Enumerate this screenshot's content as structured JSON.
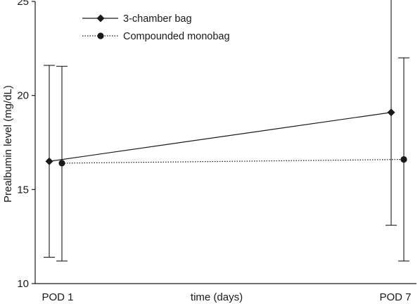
{
  "chart_data": {
    "type": "line",
    "x_categories": [
      "POD 1",
      "POD 7"
    ],
    "xlabel": "time (days)",
    "ylabel": "Prealbumin level (mg/dL)",
    "ylim": [
      10,
      25
    ],
    "yticks": [
      10,
      15,
      20,
      25
    ],
    "grid": false,
    "legend_position": "top-left",
    "series": [
      {
        "name": "3-chamber bag",
        "marker": "diamond",
        "line_style": "solid",
        "color": "#1a1a1a",
        "points": [
          {
            "x": "POD 1",
            "y": 16.5,
            "err_low": 11.4,
            "err_high": 21.6
          },
          {
            "x": "POD 7",
            "y": 19.1,
            "err_low": 13.1,
            "err_high": 25.1
          }
        ]
      },
      {
        "name": "Compounded monobag",
        "marker": "circle",
        "line_style": "dotted",
        "color": "#1a1a1a",
        "points": [
          {
            "x": "POD 1",
            "y": 16.4,
            "err_low": 11.2,
            "err_high": 21.55
          },
          {
            "x": "POD 7",
            "y": 16.6,
            "err_low": 11.2,
            "err_high": 22.0
          }
        ]
      }
    ]
  }
}
